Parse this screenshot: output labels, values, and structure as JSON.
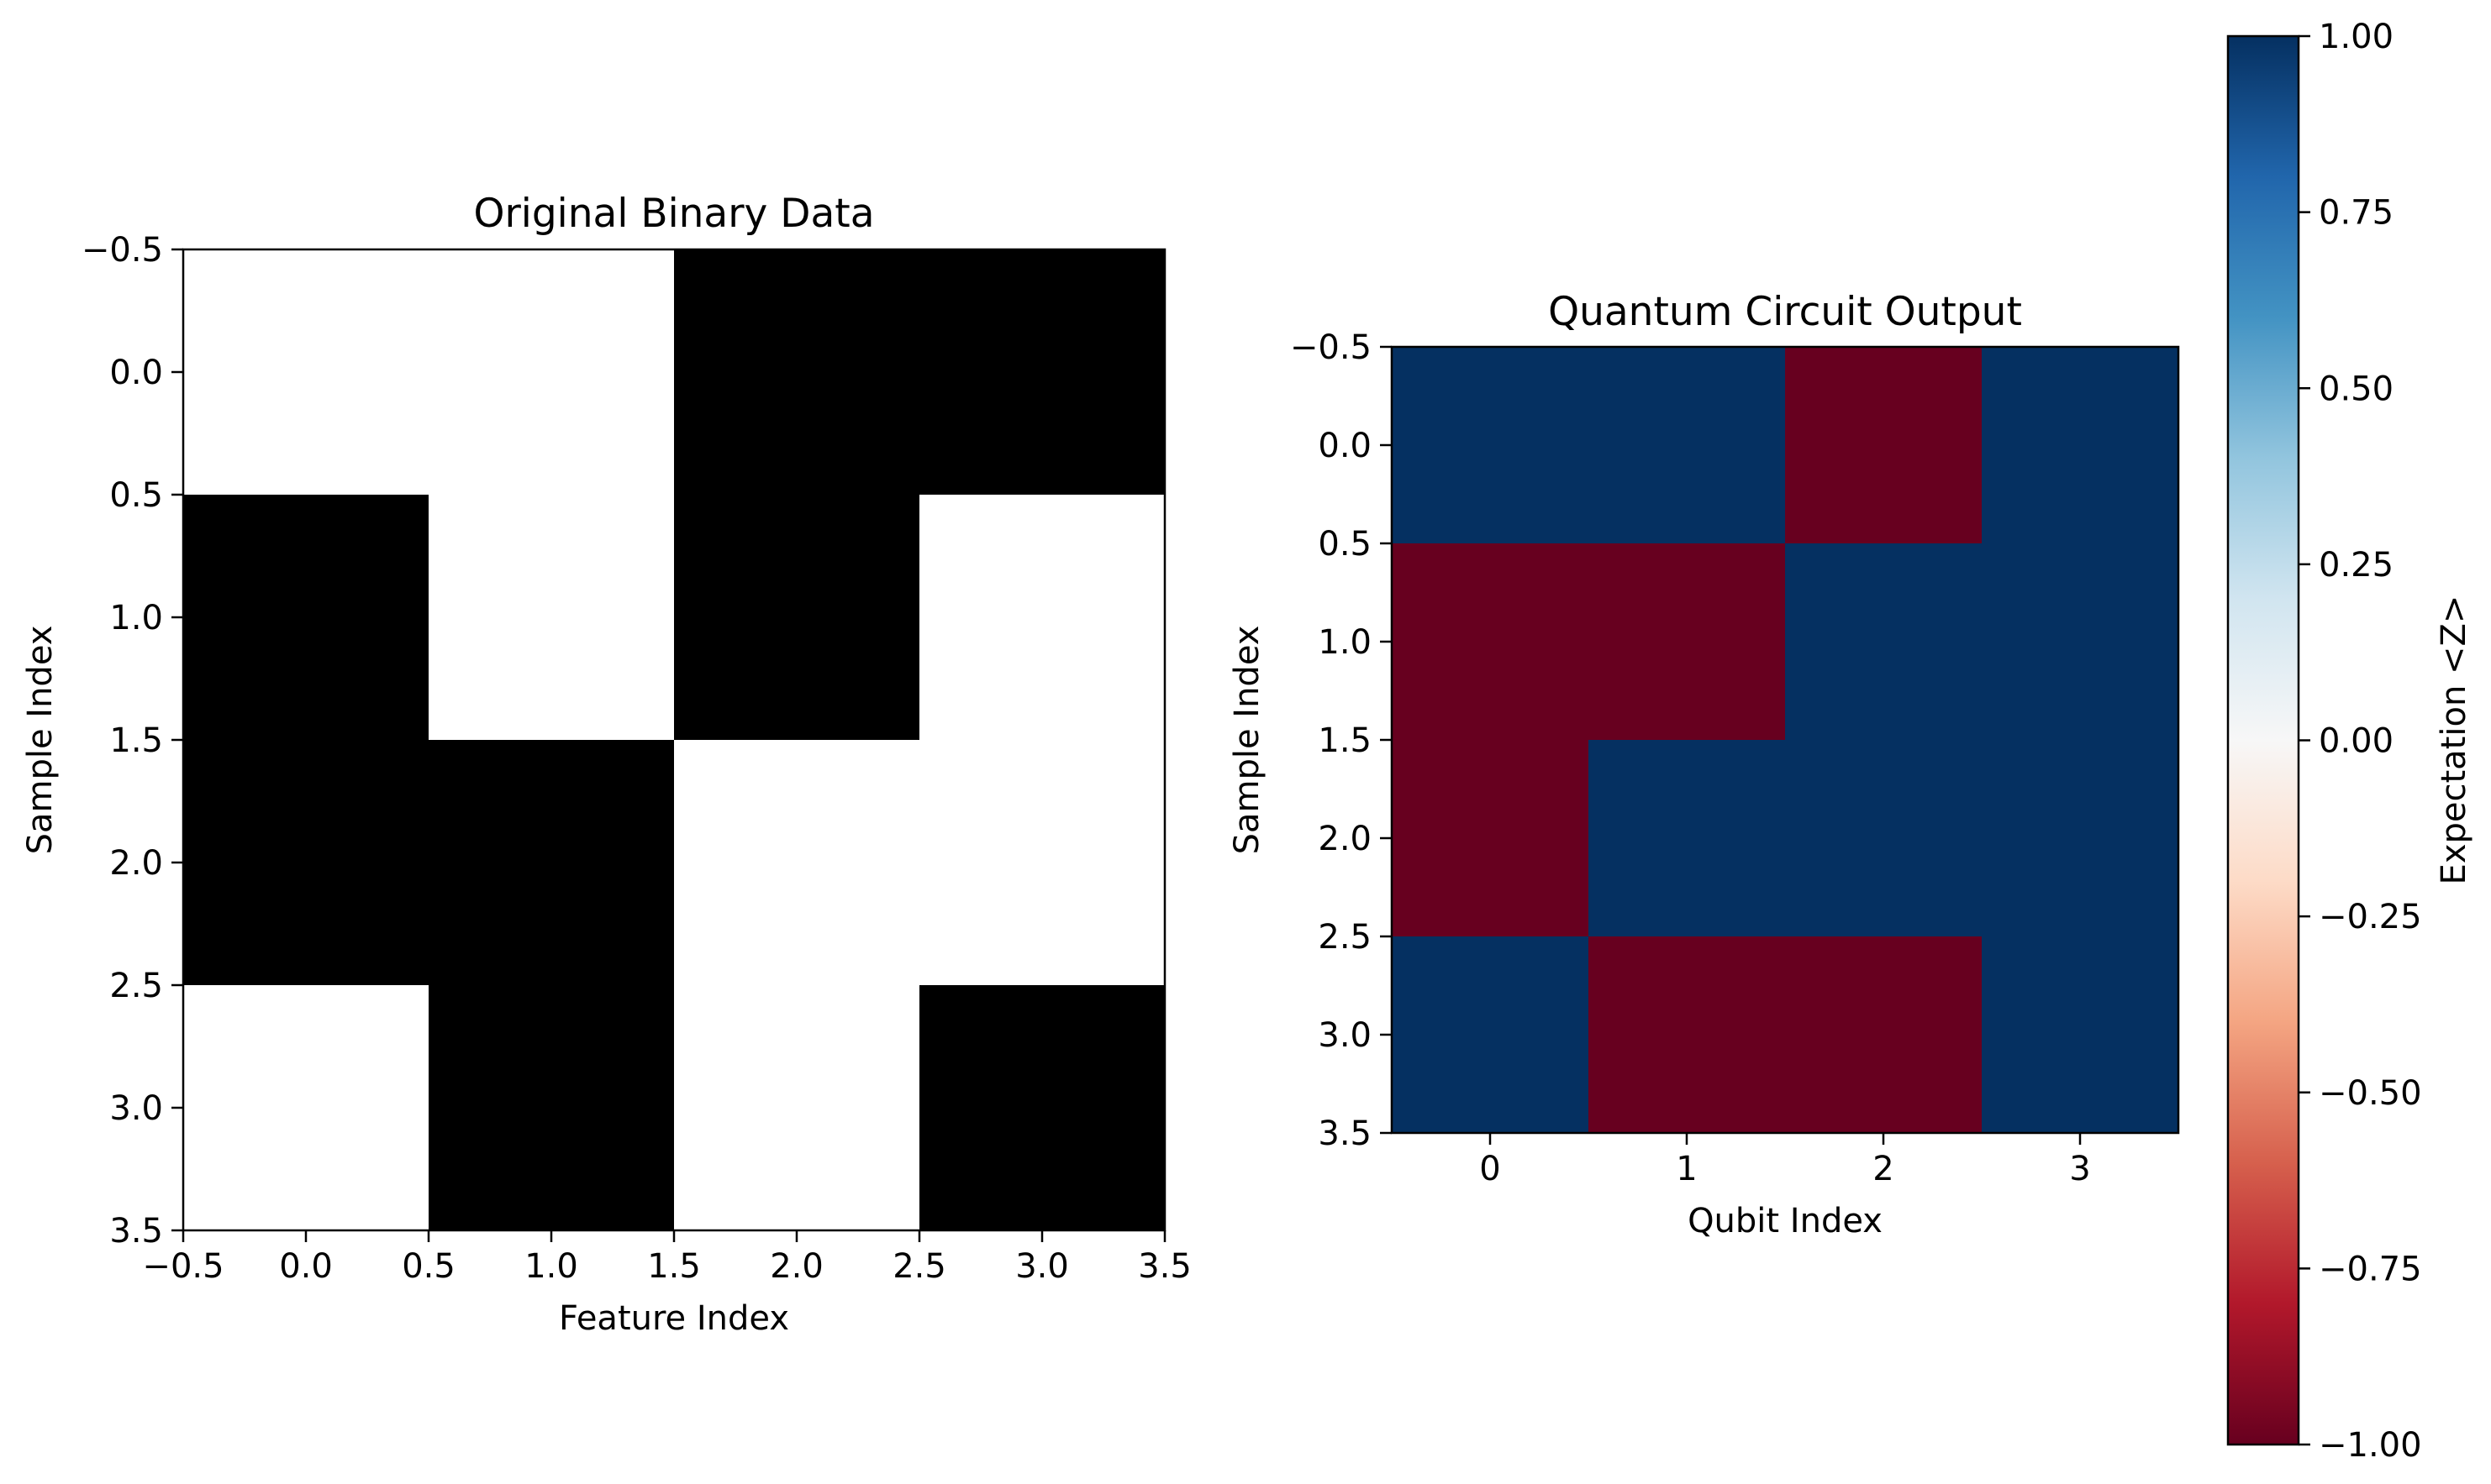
{
  "chart_data": [
    {
      "type": "heatmap",
      "title": "Original Binary Data",
      "xlabel": "Feature Index",
      "ylabel": "Sample Index",
      "colormap": "gray",
      "xlim": [
        -0.5,
        3.5
      ],
      "ylim": [
        3.5,
        -0.5
      ],
      "xticks": [
        "−0.5",
        "0.0",
        "0.5",
        "1.0",
        "1.5",
        "2.0",
        "2.5",
        "3.0",
        "3.5"
      ],
      "yticks": [
        "−0.5",
        "0.0",
        "0.5",
        "1.0",
        "1.5",
        "2.0",
        "2.5",
        "3.0",
        "3.5"
      ],
      "matrix": [
        [
          1,
          1,
          0,
          0
        ],
        [
          0,
          1,
          0,
          1
        ],
        [
          0,
          0,
          1,
          1
        ],
        [
          1,
          0,
          1,
          0
        ]
      ],
      "colors": {
        "0": "#000000",
        "1": "#ffffff"
      }
    },
    {
      "type": "heatmap",
      "title": "Quantum Circuit Output",
      "xlabel": "Qubit Index",
      "ylabel": "Sample Index",
      "colormap": "RdBu",
      "xlim": [
        -0.5,
        3.5
      ],
      "ylim": [
        3.5,
        -0.5
      ],
      "xticks": [
        "0",
        "1",
        "2",
        "3"
      ],
      "yticks": [
        "−0.5",
        "0.0",
        "0.5",
        "1.0",
        "1.5",
        "2.0",
        "2.5",
        "3.0",
        "3.5"
      ],
      "matrix": [
        [
          1,
          1,
          -1,
          1
        ],
        [
          -1,
          -1,
          1,
          1
        ],
        [
          -1,
          1,
          1,
          1
        ],
        [
          1,
          -1,
          -1,
          1
        ]
      ],
      "colors": {
        "-1": "#67001f",
        "1": "#053061"
      },
      "colorbar": {
        "label": "Expectation <Z>",
        "range": [
          -1.0,
          1.0
        ],
        "ticks": [
          "1.00",
          "0.75",
          "0.50",
          "0.25",
          "0.00",
          "−0.25",
          "−0.50",
          "−0.75",
          "−1.00"
        ],
        "gradient": [
          "#053061",
          "#2166ac",
          "#4393c3",
          "#92c5de",
          "#d1e5f0",
          "#f7f7f7",
          "#fddbc7",
          "#f4a582",
          "#d6604d",
          "#b2182b",
          "#67001f"
        ]
      }
    }
  ]
}
